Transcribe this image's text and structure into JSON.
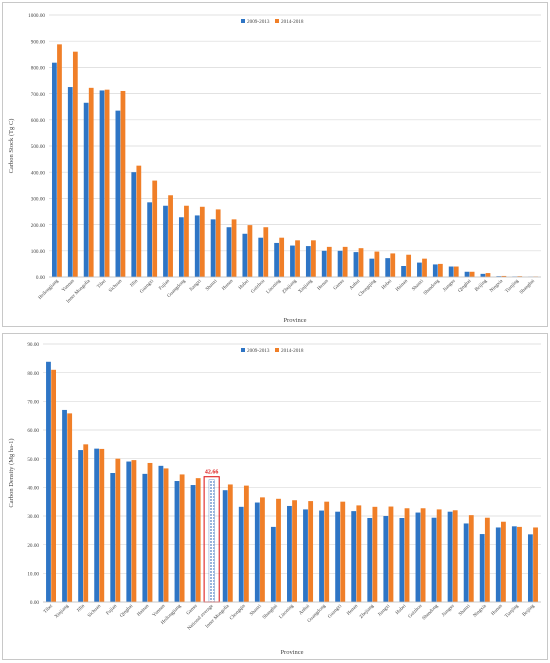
{
  "legend": {
    "series_a": "2009-2013",
    "series_b": "2014-2018"
  },
  "colors": {
    "series_a": "#2E75C5",
    "series_b": "#F07F28",
    "highlight_box": "#E02020",
    "highlight_label": "#E02020",
    "grid": "#D9D9D9",
    "axis_text": "#444444"
  },
  "chart_data": [
    {
      "type": "bar",
      "ylabel": "Carbon Stock (Tg C)",
      "xlabel": "Province",
      "ylim": [
        0,
        1000
      ],
      "yticks": [
        "0.00",
        "100.00",
        "200.00",
        "300.00",
        "400.00",
        "500.00",
        "600.00",
        "700.00",
        "800.00",
        "900.00",
        "1000.00"
      ],
      "grid": true,
      "legend_position": "top-right",
      "categories": [
        "Heilongjiang",
        "Yunnan",
        "Inner Mongolia",
        "Tibet",
        "Sichuan",
        "Jilin",
        "Guangxi",
        "Fujian",
        "Guangdong",
        "Jiangxi",
        "Shanxi",
        "Hunan",
        "Hubei",
        "Guizhou",
        "Liaoning",
        "Zhejiang",
        "Xinjiang",
        "Henan",
        "Gansu",
        "Anhui",
        "Chongqing",
        "Hebei",
        "Hainan",
        "Shanxi",
        "Shandong",
        "Jiangsu",
        "Qinghai",
        "Beijing",
        "Ningxia",
        "Tianjing",
        "Shanghai"
      ],
      "series": [
        {
          "name": "2009-2013",
          "values": [
            818,
            725,
            665,
            712,
            635,
            400,
            285,
            272,
            228,
            235,
            220,
            190,
            165,
            150,
            130,
            120,
            118,
            100,
            100,
            95,
            70,
            72,
            42,
            55,
            48,
            40,
            20,
            12,
            3,
            2,
            1
          ]
        },
        {
          "name": "2014-2018",
          "values": [
            888,
            860,
            722,
            715,
            710,
            425,
            368,
            312,
            272,
            268,
            258,
            220,
            198,
            190,
            150,
            140,
            140,
            115,
            115,
            110,
            97,
            90,
            85,
            70,
            50,
            40,
            20,
            15,
            4,
            3,
            2
          ]
        }
      ]
    },
    {
      "type": "bar",
      "ylabel": "Carbon Density (Mg ha-1)",
      "xlabel": "Province",
      "ylim": [
        0,
        90
      ],
      "yticks": [
        "0.00",
        "10.00",
        "20.00",
        "30.00",
        "40.00",
        "50.00",
        "60.00",
        "70.00",
        "80.00",
        "90.00"
      ],
      "grid": true,
      "legend_position": "top-right",
      "categories": [
        "Tibet",
        "Xinjiang",
        "Jilin",
        "Sichuan",
        "Fujian",
        "Qinghai",
        "Hainan",
        "Yunnan",
        "Heilongjiang",
        "Gansu",
        "National average",
        "Inner Mongolia",
        "Chongqin",
        "Shanxi",
        "Shanghai",
        "Liaoning",
        "Anhui",
        "Guangdong",
        "Guangxi",
        "Henan",
        "Zhejiang",
        "Jiangxi",
        "Hubei",
        "Guizhou",
        "Shandong",
        "Jiangsu",
        "Shanxi",
        "Ningxia",
        "Hunan",
        "Tianjing",
        "Beijing"
      ],
      "series": [
        {
          "name": "2009-2013",
          "values": [
            83.8,
            67.0,
            53.0,
            53.5,
            45.0,
            49.0,
            44.7,
            47.5,
            42.2,
            40.8,
            null,
            39.0,
            33.2,
            34.7,
            26.2,
            33.5,
            32.3,
            31.9,
            31.5,
            31.7,
            29.3,
            30.0,
            29.3,
            31.2,
            29.4,
            31.5,
            27.4,
            23.7,
            26.0,
            26.4,
            23.6
          ]
        },
        {
          "name": "2014-2018",
          "values": [
            81.0,
            65.8,
            55.0,
            53.4,
            50.0,
            49.5,
            48.5,
            46.6,
            44.5,
            43.2,
            null,
            41.0,
            40.6,
            36.5,
            36.0,
            35.5,
            35.2,
            35.0,
            35.0,
            33.7,
            33.2,
            33.3,
            32.7,
            32.7,
            32.3,
            32.0,
            30.3,
            29.4,
            28.0,
            26.2,
            26.0
          ]
        }
      ],
      "highlight": {
        "category": "National average",
        "value": 42.66,
        "label": "42.66"
      }
    }
  ]
}
